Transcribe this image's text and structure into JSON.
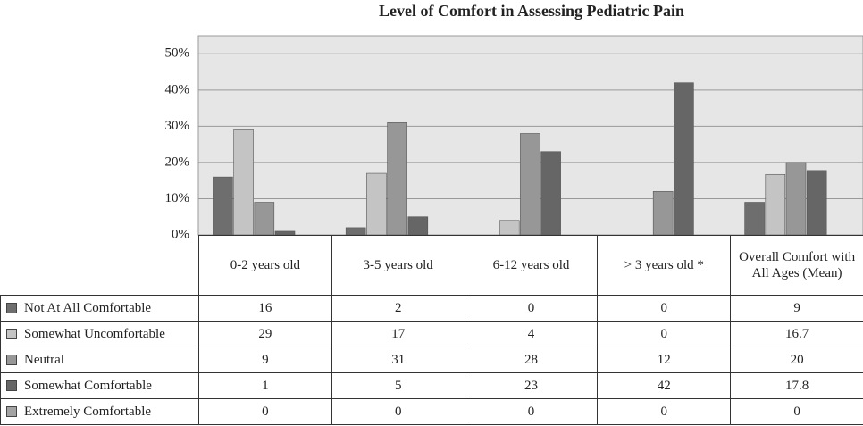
{
  "chart_data": {
    "type": "bar",
    "title": "Level of Comfort in Assessing Pediatric Pain",
    "categories": [
      "0-2 years old",
      "3-5 years old",
      "6-12 years old",
      "> 3 years old *",
      "Overall Comfort with All Ages (Mean)"
    ],
    "series": [
      {
        "name": "Not  At All Comfortable",
        "color": "#6e6e6e",
        "values": [
          16,
          2,
          0,
          0,
          9
        ]
      },
      {
        "name": "Somewhat Uncomfortable",
        "color": "#c4c4c4",
        "values": [
          29,
          17,
          4,
          0,
          16.7
        ]
      },
      {
        "name": "Neutral",
        "color": "#979797",
        "values": [
          9,
          31,
          28,
          12,
          20
        ]
      },
      {
        "name": "Somewhat Comfortable",
        "color": "#666666",
        "values": [
          1,
          5,
          23,
          42,
          17.8
        ]
      },
      {
        "name": "Extremely Comfortable",
        "color": "#a3a3a3",
        "values": [
          0,
          0,
          0,
          0,
          0
        ]
      }
    ],
    "ylim": [
      0,
      55
    ],
    "yticks": [
      {
        "value": 0,
        "label": "0%"
      },
      {
        "value": 10,
        "label": "10%"
      },
      {
        "value": 20,
        "label": "20%"
      },
      {
        "value": 30,
        "label": "30%"
      },
      {
        "value": 40,
        "label": "40%"
      },
      {
        "value": 50,
        "label": "50%"
      }
    ],
    "grid": true
  }
}
